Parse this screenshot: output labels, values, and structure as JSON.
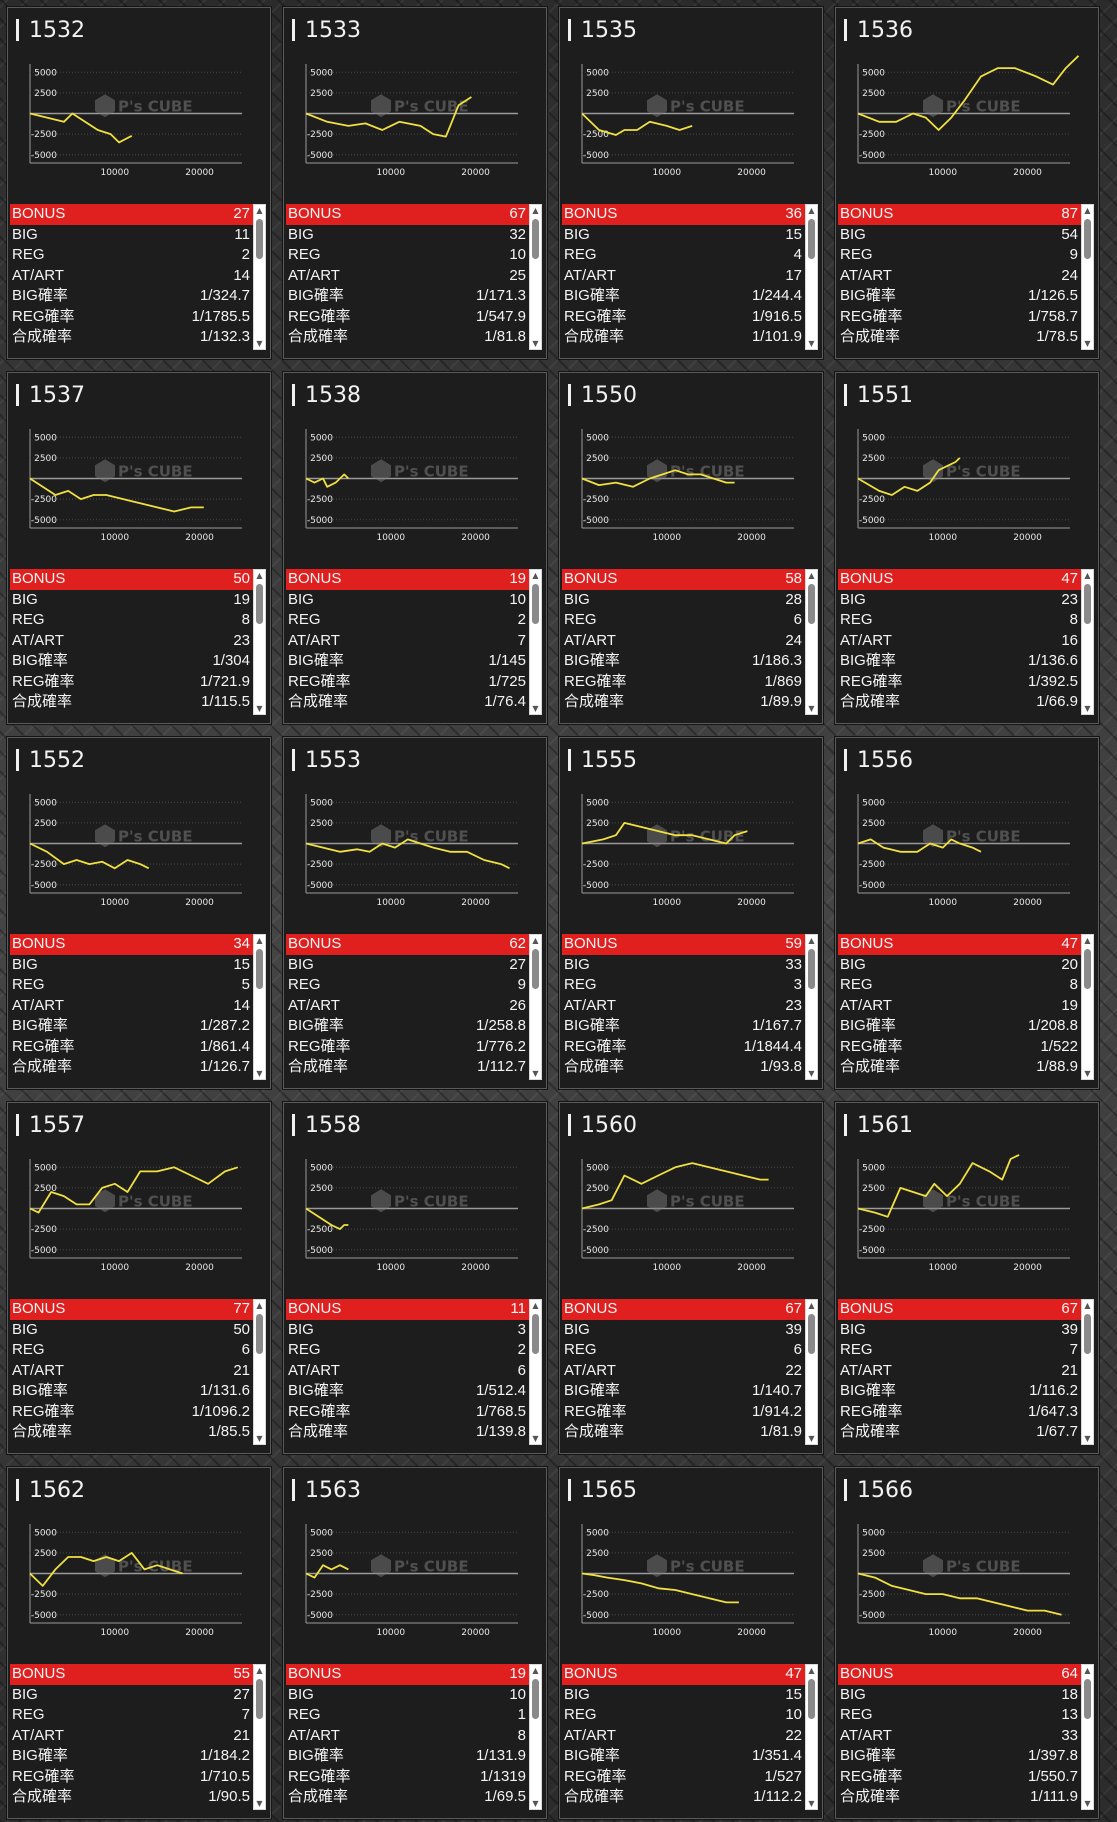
{
  "labels": [
    "BONUS",
    "BIG",
    "REG",
    "AT/ART",
    "BIG確率",
    "REG確率",
    "合成確率"
  ],
  "axis": {
    "y_ticks": [
      "5000",
      "2500",
      "-2500",
      "-5000"
    ],
    "x_ticks": [
      "10000",
      "20000"
    ]
  },
  "watermark": {
    "brand": "P's CUBE",
    "icon": "cube-logo-icon"
  },
  "colors": {
    "line": "#f0e040",
    "bonus_bg": "#e01f1f",
    "card_bg": "#1d1d1d"
  },
  "chart_data": [
    {
      "type": "line",
      "title": "1532",
      "x": [
        0,
        2000,
        4000,
        5000,
        6500,
        8000,
        9500,
        10500,
        12000
      ],
      "y": [
        0,
        -500,
        -1000,
        0,
        -1000,
        -2000,
        -2500,
        -3500,
        -2700
      ],
      "xlim": [
        0,
        25000
      ],
      "ylim": [
        -6000,
        6000
      ]
    },
    {
      "type": "line",
      "title": "1533",
      "x": [
        0,
        2500,
        5000,
        7000,
        9000,
        11000,
        13500,
        15000,
        16500,
        18000,
        19500
      ],
      "y": [
        0,
        -1000,
        -1500,
        -1200,
        -2000,
        -1000,
        -1500,
        -2500,
        -2800,
        1000,
        2000
      ],
      "xlim": [
        0,
        25000
      ],
      "ylim": [
        -6000,
        6000
      ]
    },
    {
      "type": "line",
      "title": "1535",
      "x": [
        0,
        2000,
        4000,
        5000,
        6500,
        8000,
        10000,
        11500,
        13000
      ],
      "y": [
        0,
        -2000,
        -2600,
        -2000,
        -2000,
        -1000,
        -1500,
        -2000,
        -1500
      ],
      "xlim": [
        0,
        25000
      ],
      "ylim": [
        -6000,
        6000
      ]
    },
    {
      "type": "line",
      "title": "1536",
      "x": [
        0,
        2500,
        4500,
        6500,
        8000,
        9500,
        11000,
        12500,
        14500,
        16500,
        18500,
        21000,
        23000,
        24500,
        26000
      ],
      "y": [
        0,
        -1000,
        -1000,
        0,
        -500,
        -2000,
        -500,
        1500,
        4500,
        5500,
        5500,
        4500,
        3500,
        5500,
        7000
      ],
      "xlim": [
        0,
        25000
      ],
      "ylim": [
        -6000,
        6000
      ]
    },
    {
      "type": "line",
      "title": "1537",
      "x": [
        0,
        1500,
        3000,
        4500,
        6000,
        7500,
        9000,
        11000,
        13000,
        15000,
        17000,
        19000,
        20500
      ],
      "y": [
        0,
        -1000,
        -2000,
        -1500,
        -2500,
        -2000,
        -2000,
        -2500,
        -3000,
        -3500,
        -4000,
        -3500,
        -3500
      ],
      "xlim": [
        0,
        25000
      ],
      "ylim": [
        -6000,
        6000
      ]
    },
    {
      "type": "line",
      "title": "1538",
      "x": [
        0,
        1000,
        2000,
        2500,
        3500,
        4500,
        5000
      ],
      "y": [
        0,
        -500,
        0,
        -1000,
        -500,
        500,
        0
      ],
      "xlim": [
        0,
        25000
      ],
      "ylim": [
        -6000,
        6000
      ]
    },
    {
      "type": "line",
      "title": "1550",
      "x": [
        0,
        2000,
        4000,
        6000,
        8000,
        9500,
        11000,
        12500,
        14000,
        15500,
        17000,
        18000
      ],
      "y": [
        0,
        -800,
        -500,
        -1000,
        0,
        500,
        1000,
        500,
        500,
        0,
        -500,
        -500
      ],
      "xlim": [
        0,
        25000
      ],
      "ylim": [
        -6000,
        6000
      ]
    },
    {
      "type": "line",
      "title": "1551",
      "x": [
        0,
        2500,
        4000,
        5500,
        7000,
        8500,
        9500,
        10500,
        11500,
        12000
      ],
      "y": [
        0,
        -1500,
        -2000,
        -1000,
        -1500,
        -500,
        1000,
        1500,
        2000,
        2500
      ],
      "xlim": [
        0,
        25000
      ],
      "ylim": [
        -6000,
        6000
      ]
    },
    {
      "type": "line",
      "title": "1552",
      "x": [
        0,
        2000,
        4000,
        5500,
        7000,
        8500,
        10000,
        11500,
        13000,
        14000
      ],
      "y": [
        0,
        -1000,
        -2500,
        -2000,
        -2500,
        -2200,
        -3000,
        -2000,
        -2500,
        -3000
      ],
      "xlim": [
        0,
        25000
      ],
      "ylim": [
        -6000,
        6000
      ]
    },
    {
      "type": "line",
      "title": "1553",
      "x": [
        0,
        2000,
        4000,
        6000,
        7500,
        9000,
        10500,
        12000,
        13500,
        15000,
        17000,
        19000,
        21000,
        23000,
        24000
      ],
      "y": [
        0,
        -500,
        -1000,
        -700,
        -1000,
        0,
        -500,
        500,
        0,
        -500,
        -1000,
        -1000,
        -2000,
        -2500,
        -3000
      ],
      "xlim": [
        0,
        25000
      ],
      "ylim": [
        -6000,
        6000
      ]
    },
    {
      "type": "line",
      "title": "1555",
      "x": [
        0,
        2500,
        4000,
        5000,
        7000,
        9000,
        11000,
        13000,
        15000,
        17000,
        18000,
        19500
      ],
      "y": [
        0,
        500,
        1000,
        2500,
        2000,
        1500,
        1000,
        1000,
        500,
        0,
        1000,
        1500
      ],
      "xlim": [
        0,
        25000
      ],
      "ylim": [
        -6000,
        6000
      ]
    },
    {
      "type": "line",
      "title": "1556",
      "x": [
        0,
        1500,
        3000,
        5000,
        7000,
        8500,
        10000,
        11000,
        12000,
        13500,
        14500
      ],
      "y": [
        0,
        500,
        -500,
        -1000,
        -1000,
        0,
        -500,
        500,
        0,
        -500,
        -1000
      ],
      "xlim": [
        0,
        25000
      ],
      "ylim": [
        -6000,
        6000
      ]
    },
    {
      "type": "line",
      "title": "1557",
      "x": [
        0,
        1000,
        2500,
        4000,
        5500,
        7000,
        8500,
        10000,
        11500,
        13000,
        15000,
        17000,
        19000,
        21000,
        23000,
        24500
      ],
      "y": [
        0,
        -500,
        2000,
        1500,
        500,
        500,
        2500,
        3000,
        2000,
        4500,
        4500,
        5000,
        4000,
        3000,
        4500,
        5000
      ],
      "xlim": [
        0,
        25000
      ],
      "ylim": [
        -6000,
        6000
      ]
    },
    {
      "type": "line",
      "title": "1558",
      "x": [
        0,
        1500,
        3000,
        4000,
        4500,
        5000
      ],
      "y": [
        0,
        -1000,
        -2000,
        -2500,
        -2000,
        -2000
      ],
      "xlim": [
        0,
        25000
      ],
      "ylim": [
        -6000,
        6000
      ]
    },
    {
      "type": "line",
      "title": "1560",
      "x": [
        0,
        2000,
        3500,
        5000,
        7000,
        9000,
        11000,
        13000,
        15000,
        17000,
        19000,
        21000,
        22000
      ],
      "y": [
        0,
        500,
        1000,
        4000,
        3000,
        4000,
        5000,
        5500,
        5000,
        4500,
        4000,
        3500,
        3500
      ],
      "xlim": [
        0,
        25000
      ],
      "ylim": [
        -6000,
        6000
      ]
    },
    {
      "type": "line",
      "title": "1561",
      "x": [
        0,
        2000,
        3500,
        5000,
        6500,
        8000,
        9000,
        10500,
        12000,
        13500,
        15500,
        17000,
        18000,
        19000
      ],
      "y": [
        0,
        -500,
        -1000,
        2500,
        2000,
        1500,
        3000,
        1500,
        3000,
        5500,
        4500,
        3500,
        6000,
        6500
      ],
      "xlim": [
        0,
        25000
      ],
      "ylim": [
        -6000,
        6000
      ]
    },
    {
      "type": "line",
      "title": "1562",
      "x": [
        0,
        1500,
        3000,
        4500,
        6000,
        7500,
        9000,
        10500,
        12000,
        13500,
        15000,
        16500,
        18000
      ],
      "y": [
        0,
        -1500,
        500,
        2000,
        2000,
        1500,
        2000,
        1500,
        2500,
        500,
        1000,
        500,
        0
      ],
      "xlim": [
        0,
        25000
      ],
      "ylim": [
        -6000,
        6000
      ]
    },
    {
      "type": "line",
      "title": "1563",
      "x": [
        0,
        1000,
        2000,
        3000,
        4000,
        5000
      ],
      "y": [
        0,
        -500,
        1000,
        500,
        1000,
        500
      ],
      "xlim": [
        0,
        25000
      ],
      "ylim": [
        -6000,
        6000
      ]
    },
    {
      "type": "line",
      "title": "1565",
      "x": [
        0,
        1500,
        3000,
        5000,
        7000,
        9000,
        11000,
        13000,
        15000,
        17000,
        18500
      ],
      "y": [
        0,
        -200,
        -500,
        -800,
        -1200,
        -1800,
        -2000,
        -2500,
        -3000,
        -3500,
        -3500
      ],
      "xlim": [
        0,
        25000
      ],
      "ylim": [
        -6000,
        6000
      ]
    },
    {
      "type": "line",
      "title": "1566",
      "x": [
        0,
        2000,
        4000,
        6000,
        8000,
        10000,
        12000,
        14000,
        16000,
        18000,
        20000,
        22000,
        24000
      ],
      "y": [
        0,
        -500,
        -1500,
        -2000,
        -2500,
        -2500,
        -3000,
        -3000,
        -3500,
        -4000,
        -4500,
        -4500,
        -5000
      ],
      "xlim": [
        0,
        25000
      ],
      "ylim": [
        -6000,
        6000
      ]
    }
  ],
  "machines": [
    {
      "id": "1532",
      "bonus": "27",
      "big": "11",
      "reg": "2",
      "at": "14",
      "big_rate": "1/324.7",
      "reg_rate": "1/1785.5",
      "combined": "1/132.3"
    },
    {
      "id": "1533",
      "bonus": "67",
      "big": "32",
      "reg": "10",
      "at": "25",
      "big_rate": "1/171.3",
      "reg_rate": "1/547.9",
      "combined": "1/81.8"
    },
    {
      "id": "1535",
      "bonus": "36",
      "big": "15",
      "reg": "4",
      "at": "17",
      "big_rate": "1/244.4",
      "reg_rate": "1/916.5",
      "combined": "1/101.9"
    },
    {
      "id": "1536",
      "bonus": "87",
      "big": "54",
      "reg": "9",
      "at": "24",
      "big_rate": "1/126.5",
      "reg_rate": "1/758.7",
      "combined": "1/78.5"
    },
    {
      "id": "1537",
      "bonus": "50",
      "big": "19",
      "reg": "8",
      "at": "23",
      "big_rate": "1/304",
      "reg_rate": "1/721.9",
      "combined": "1/115.5"
    },
    {
      "id": "1538",
      "bonus": "19",
      "big": "10",
      "reg": "2",
      "at": "7",
      "big_rate": "1/145",
      "reg_rate": "1/725",
      "combined": "1/76.4"
    },
    {
      "id": "1550",
      "bonus": "58",
      "big": "28",
      "reg": "6",
      "at": "24",
      "big_rate": "1/186.3",
      "reg_rate": "1/869",
      "combined": "1/89.9"
    },
    {
      "id": "1551",
      "bonus": "47",
      "big": "23",
      "reg": "8",
      "at": "16",
      "big_rate": "1/136.6",
      "reg_rate": "1/392.5",
      "combined": "1/66.9"
    },
    {
      "id": "1552",
      "bonus": "34",
      "big": "15",
      "reg": "5",
      "at": "14",
      "big_rate": "1/287.2",
      "reg_rate": "1/861.4",
      "combined": "1/126.7"
    },
    {
      "id": "1553",
      "bonus": "62",
      "big": "27",
      "reg": "9",
      "at": "26",
      "big_rate": "1/258.8",
      "reg_rate": "1/776.2",
      "combined": "1/112.7"
    },
    {
      "id": "1555",
      "bonus": "59",
      "big": "33",
      "reg": "3",
      "at": "23",
      "big_rate": "1/167.7",
      "reg_rate": "1/1844.4",
      "combined": "1/93.8"
    },
    {
      "id": "1556",
      "bonus": "47",
      "big": "20",
      "reg": "8",
      "at": "19",
      "big_rate": "1/208.8",
      "reg_rate": "1/522",
      "combined": "1/88.9"
    },
    {
      "id": "1557",
      "bonus": "77",
      "big": "50",
      "reg": "6",
      "at": "21",
      "big_rate": "1/131.6",
      "reg_rate": "1/1096.2",
      "combined": "1/85.5"
    },
    {
      "id": "1558",
      "bonus": "11",
      "big": "3",
      "reg": "2",
      "at": "6",
      "big_rate": "1/512.4",
      "reg_rate": "1/768.5",
      "combined": "1/139.8"
    },
    {
      "id": "1560",
      "bonus": "67",
      "big": "39",
      "reg": "6",
      "at": "22",
      "big_rate": "1/140.7",
      "reg_rate": "1/914.2",
      "combined": "1/81.9"
    },
    {
      "id": "1561",
      "bonus": "67",
      "big": "39",
      "reg": "7",
      "at": "21",
      "big_rate": "1/116.2",
      "reg_rate": "1/647.3",
      "combined": "1/67.7"
    },
    {
      "id": "1562",
      "bonus": "55",
      "big": "27",
      "reg": "7",
      "at": "21",
      "big_rate": "1/184.2",
      "reg_rate": "1/710.5",
      "combined": "1/90.5"
    },
    {
      "id": "1563",
      "bonus": "19",
      "big": "10",
      "reg": "1",
      "at": "8",
      "big_rate": "1/131.9",
      "reg_rate": "1/1319",
      "combined": "1/69.5"
    },
    {
      "id": "1565",
      "bonus": "47",
      "big": "15",
      "reg": "10",
      "at": "22",
      "big_rate": "1/351.4",
      "reg_rate": "1/527",
      "combined": "1/112.2"
    },
    {
      "id": "1566",
      "bonus": "64",
      "big": "18",
      "reg": "13",
      "at": "33",
      "big_rate": "1/397.8",
      "reg_rate": "1/550.7",
      "combined": "1/111.9"
    }
  ]
}
